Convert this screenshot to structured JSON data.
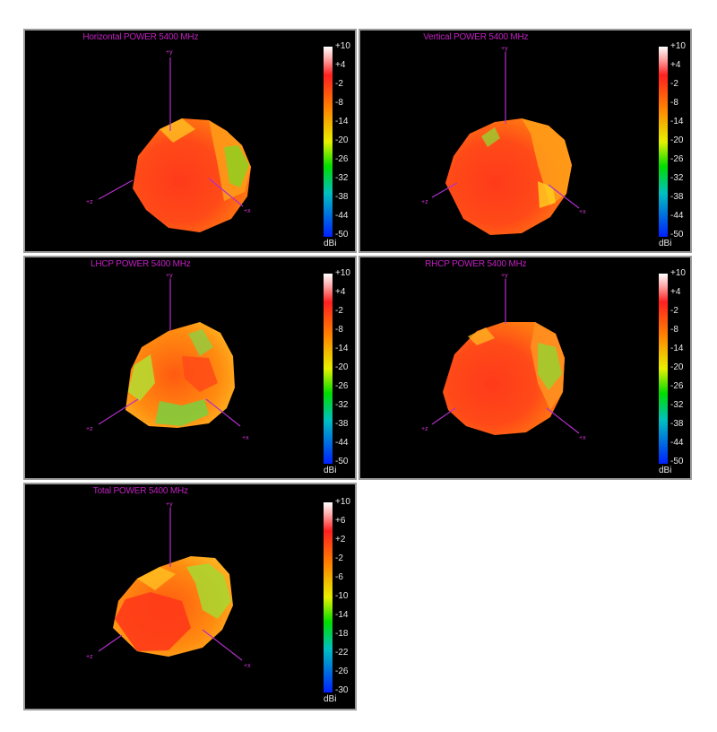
{
  "panels": [
    {
      "title": "Horizontal POWER 5400  MHz",
      "unit": "dBi",
      "scale": [
        "+10",
        "+4",
        "-2",
        "-8",
        "-14",
        "-20",
        "-26",
        "-32",
        "-38",
        "-44",
        "-50"
      ],
      "axes": {
        "y": "+y",
        "x": "+x",
        "z": "+z"
      }
    },
    {
      "title": "Vertical POWER 5400  MHz",
      "unit": "dBi",
      "scale": [
        "+10",
        "+4",
        "-2",
        "-8",
        "-14",
        "-20",
        "-26",
        "-32",
        "-38",
        "-44",
        "-50"
      ],
      "axes": {
        "y": "+y",
        "x": "+x",
        "z": "+z"
      }
    },
    {
      "title": "LHCP POWER 5400  MHz",
      "unit": "dBi",
      "scale": [
        "+10",
        "+4",
        "-2",
        "-8",
        "-14",
        "-20",
        "-26",
        "-32",
        "-38",
        "-44",
        "-50"
      ],
      "axes": {
        "y": "+y",
        "x": "+x",
        "z": "+z"
      }
    },
    {
      "title": "RHCP POWER 5400  MHz",
      "unit": "dBi",
      "scale": [
        "+10",
        "+4",
        "-2",
        "-8",
        "-14",
        "-20",
        "-26",
        "-32",
        "-38",
        "-44",
        "-50"
      ],
      "axes": {
        "y": "+y",
        "x": "+x",
        "z": "+z"
      }
    },
    {
      "title": "Total POWER 5400  MHz",
      "unit": "dBi",
      "scale": [
        "+10",
        "+6",
        "+2",
        "-2",
        "-6",
        "-10",
        "-14",
        "-18",
        "-22",
        "-26",
        "-30"
      ],
      "axes": {
        "y": "+y",
        "x": "+x",
        "z": "+z"
      }
    }
  ]
}
